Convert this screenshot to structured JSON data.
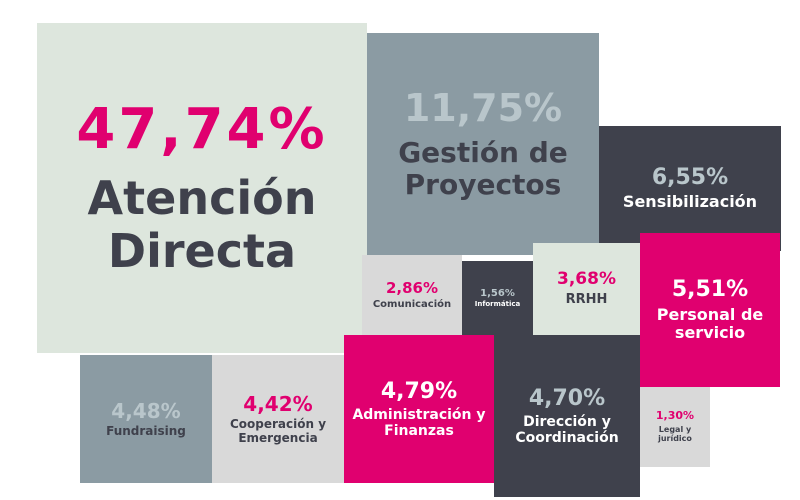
{
  "colors": {
    "mint": "#dde6dd",
    "slate": "#8b9ba3",
    "charcoal": "#3f414c",
    "magenta": "#e0006f",
    "light_gray": "#d9d9d9",
    "dark_text": "#3f414c",
    "white_text": "#ffffff",
    "light_text": "#b9c6cb"
  },
  "chart_data": {
    "type": "treemap",
    "title": "",
    "items": [
      {
        "label": "Atención Directa",
        "value": 47.74,
        "value_text": "47,74%",
        "color": "mint"
      },
      {
        "label": "Gestión de Proyectos",
        "value": 11.75,
        "value_text": "11,75%",
        "color": "slate"
      },
      {
        "label": "Sensibilización",
        "value": 6.55,
        "value_text": "6,55%",
        "color": "charcoal"
      },
      {
        "label": "Comunicación",
        "value": 2.86,
        "value_text": "2,86%",
        "color": "light_gray"
      },
      {
        "label": "Informática",
        "value": 1.56,
        "value_text": "1,56%",
        "color": "charcoal"
      },
      {
        "label": "RRHH",
        "value": 3.68,
        "value_text": "3,68%",
        "color": "mint"
      },
      {
        "label": "Personal de servicio",
        "value": 5.51,
        "value_text": "5,51%",
        "color": "magenta"
      },
      {
        "label": "Fundraising",
        "value": 4.48,
        "value_text": "4,48%",
        "color": "slate"
      },
      {
        "label": "Cooperación y Emergencia",
        "value": 4.42,
        "value_text": "4,42%",
        "color": "light_gray"
      },
      {
        "label": "Administración y Finanzas",
        "value": 4.79,
        "value_text": "4,79%",
        "color": "magenta"
      },
      {
        "label": "Dirección y Coordinación",
        "value": 4.7,
        "value_text": "4,70%",
        "color": "charcoal"
      },
      {
        "label": "Legal y jurídico",
        "value": 1.3,
        "value_text": "1,30%",
        "color": "light_gray"
      }
    ]
  }
}
